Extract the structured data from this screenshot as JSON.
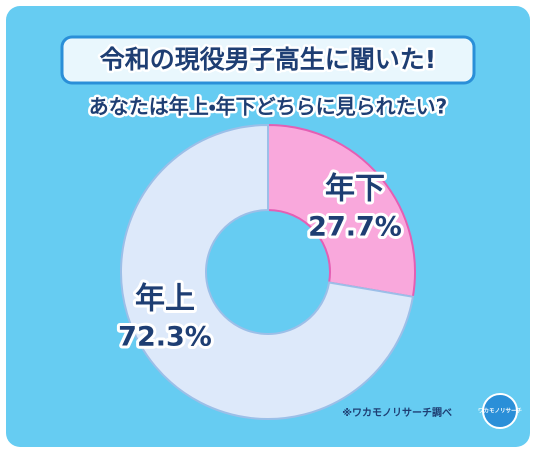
{
  "chart_data": {
    "type": "pie",
    "title": "令和の現役男子高生に聞いた!",
    "subtitle": "あなたは年上・年下どちらに見られたい?",
    "categories": [
      "年下",
      "年上"
    ],
    "values": [
      27.7,
      72.3
    ],
    "value_labels": [
      "27.7%",
      "72.3%"
    ],
    "colors": [
      "#f9a8dc",
      "#dde9fa"
    ],
    "source": "※ワカモノリサーチ調べ",
    "logo": "ワカモノリサーチ"
  }
}
